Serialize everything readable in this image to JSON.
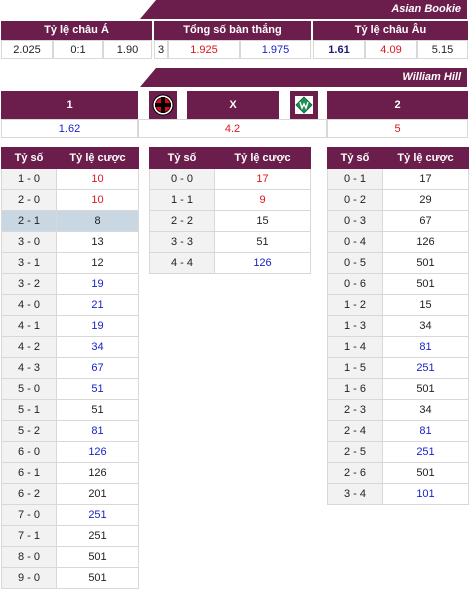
{
  "asian_bookie": {
    "title": "Asian Bookie",
    "headers": {
      "asian": "Tỷ lệ châu Á",
      "total": "Tổng số bàn thắng",
      "euro": "Tỷ lệ châu Âu"
    },
    "asian": {
      "home": "2.025",
      "line": "0:1",
      "away": "1.90"
    },
    "total": {
      "line": "3",
      "over": "1.925",
      "under": "1.975"
    },
    "euro": {
      "home": "1.61",
      "draw": "4.09",
      "away": "5.15"
    }
  },
  "william_hill": {
    "title": "William Hill",
    "labels": {
      "home": "1",
      "draw": "X",
      "away": "2"
    },
    "odds": {
      "home": "1.62",
      "draw": "4.2",
      "away": "5"
    },
    "home_logo_icon": "bayer-leverkusen-crest-icon",
    "away_logo_icon": "werder-bremen-crest-icon"
  },
  "score_headers": {
    "score": "Tỷ số",
    "odds": "Tỷ lệ cược"
  },
  "home_win_scores": [
    {
      "score": "1 - 0",
      "odds": "10",
      "color": "red"
    },
    {
      "score": "2 - 0",
      "odds": "10",
      "color": "red"
    },
    {
      "score": "2 - 1",
      "odds": "8",
      "color": "dark",
      "highlight": true
    },
    {
      "score": "3 - 0",
      "odds": "13",
      "color": "dark"
    },
    {
      "score": "3 - 1",
      "odds": "12",
      "color": "dark"
    },
    {
      "score": "3 - 2",
      "odds": "19",
      "color": "blue"
    },
    {
      "score": "4 - 0",
      "odds": "21",
      "color": "blue"
    },
    {
      "score": "4 - 1",
      "odds": "19",
      "color": "blue"
    },
    {
      "score": "4 - 2",
      "odds": "34",
      "color": "blue"
    },
    {
      "score": "4 - 3",
      "odds": "67",
      "color": "blue"
    },
    {
      "score": "5 - 0",
      "odds": "51",
      "color": "blue"
    },
    {
      "score": "5 - 1",
      "odds": "51",
      "color": "dark"
    },
    {
      "score": "5 - 2",
      "odds": "81",
      "color": "blue"
    },
    {
      "score": "6 - 0",
      "odds": "126",
      "color": "blue"
    },
    {
      "score": "6 - 1",
      "odds": "126",
      "color": "dark"
    },
    {
      "score": "6 - 2",
      "odds": "201",
      "color": "dark"
    },
    {
      "score": "7 - 0",
      "odds": "251",
      "color": "blue"
    },
    {
      "score": "7 - 1",
      "odds": "251",
      "color": "dark"
    },
    {
      "score": "8 - 0",
      "odds": "501",
      "color": "dark"
    },
    {
      "score": "9 - 0",
      "odds": "501",
      "color": "dark"
    }
  ],
  "draw_scores": [
    {
      "score": "0 - 0",
      "odds": "17",
      "color": "red"
    },
    {
      "score": "1 - 1",
      "odds": "9",
      "color": "red"
    },
    {
      "score": "2 - 2",
      "odds": "15",
      "color": "dark"
    },
    {
      "score": "3 - 3",
      "odds": "51",
      "color": "dark"
    },
    {
      "score": "4 - 4",
      "odds": "126",
      "color": "blue"
    }
  ],
  "away_win_scores": [
    {
      "score": "0 - 1",
      "odds": "17",
      "color": "dark"
    },
    {
      "score": "0 - 2",
      "odds": "29",
      "color": "dark"
    },
    {
      "score": "0 - 3",
      "odds": "67",
      "color": "dark"
    },
    {
      "score": "0 - 4",
      "odds": "126",
      "color": "dark"
    },
    {
      "score": "0 - 5",
      "odds": "501",
      "color": "dark"
    },
    {
      "score": "0 - 6",
      "odds": "501",
      "color": "dark"
    },
    {
      "score": "1 - 2",
      "odds": "15",
      "color": "dark"
    },
    {
      "score": "1 - 3",
      "odds": "34",
      "color": "dark"
    },
    {
      "score": "1 - 4",
      "odds": "81",
      "color": "blue"
    },
    {
      "score": "1 - 5",
      "odds": "251",
      "color": "blue"
    },
    {
      "score": "1 - 6",
      "odds": "501",
      "color": "dark"
    },
    {
      "score": "2 - 3",
      "odds": "34",
      "color": "dark"
    },
    {
      "score": "2 - 4",
      "odds": "81",
      "color": "blue"
    },
    {
      "score": "2 - 5",
      "odds": "251",
      "color": "blue"
    },
    {
      "score": "2 - 6",
      "odds": "501",
      "color": "dark"
    },
    {
      "score": "3 - 4",
      "odds": "101",
      "color": "blue"
    }
  ],
  "colors": {
    "header_bg": "#6b1e4b",
    "red": "#e0141e",
    "blue": "#1a22c9",
    "dark": "#1b1b6e",
    "highlight": "#c9d7e2"
  }
}
